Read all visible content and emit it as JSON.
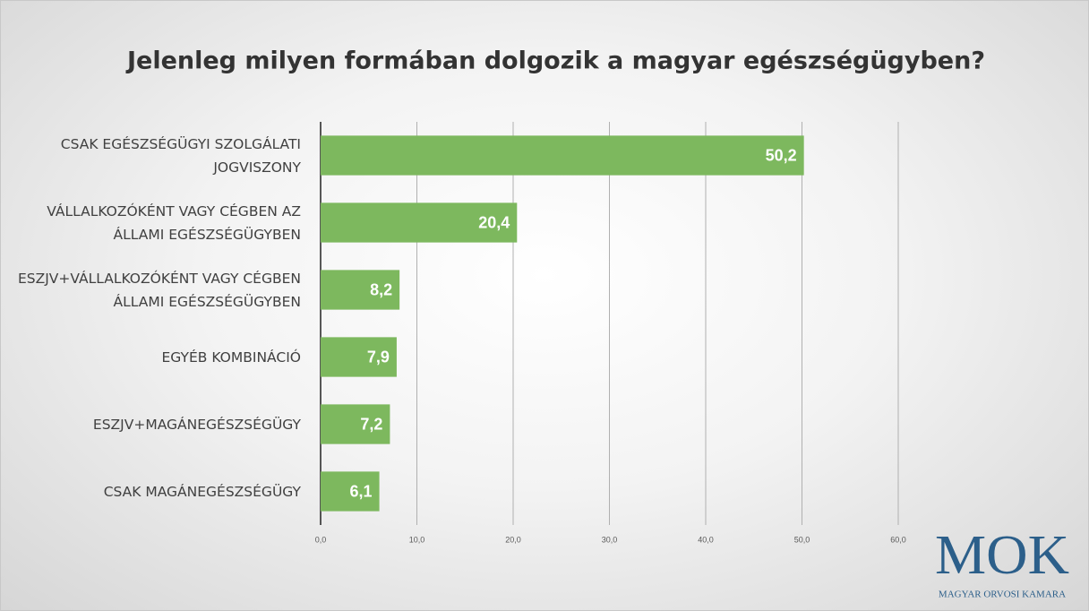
{
  "chart_data": {
    "type": "bar",
    "orientation": "horizontal",
    "title": "Jelenleg milyen formában dolgozik a magyar egészségügyben?",
    "categories": [
      "CSAK EGÉSZSÉGÜGYI SZOLGÁLATI JOGVISZONY",
      "VÁLLALKOZÓKÉNT VAGY CÉGBEN AZ ÁLLAMI EGÉSZSÉGÜGYBEN",
      "ESZJV+VÁLLALKOZÓKÉNT VAGY CÉGBEN ÁLLAMI EGÉSZSÉGÜGYBEN",
      "EGYÉB KOMBINÁCIÓ",
      "ESZJV+MAGÁNEGÉSZSÉGÜGY",
      "CSAK MAGÁNEGÉSZSÉGÜGY"
    ],
    "values": [
      50.2,
      20.4,
      8.2,
      7.9,
      7.2,
      6.1
    ],
    "value_labels": [
      "50,2",
      "20,4",
      "8,2",
      "7,9",
      "7,2",
      "6,1"
    ],
    "color": "#7db85e",
    "xlim": [
      0,
      60
    ],
    "xticks": [
      {
        "value": 0,
        "label": "0,0"
      },
      {
        "value": 10,
        "label": "10,0"
      },
      {
        "value": 20,
        "label": "20,0"
      },
      {
        "value": 30,
        "label": "30,0"
      },
      {
        "value": 40,
        "label": "40,0"
      },
      {
        "value": 50,
        "label": "50,0"
      },
      {
        "value": 60,
        "label": "60,0"
      }
    ],
    "grid": true
  },
  "logo": {
    "mark": "MOK",
    "text": "MAGYAR ORVOSI KAMARA"
  }
}
